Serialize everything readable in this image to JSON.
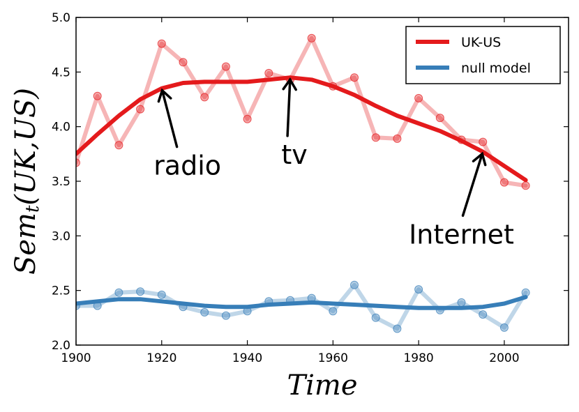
{
  "chart_data": {
    "type": "line",
    "title": "",
    "xlabel": "Time",
    "ylabel": "Sem_t(UK,US)",
    "xlim": [
      1900,
      2015
    ],
    "ylim": [
      2.0,
      5.0
    ],
    "xticks": [
      1900,
      1920,
      1940,
      1960,
      1980,
      2000
    ],
    "xtick_labels": [
      "1900",
      "1920",
      "1940",
      "1960",
      "1980",
      "2000"
    ],
    "yticks": [
      2.0,
      2.5,
      3.0,
      3.5,
      4.0,
      4.5,
      5.0
    ],
    "ytick_labels": [
      "2.0",
      "2.5",
      "3.0",
      "3.5",
      "4.0",
      "4.5",
      "5.0"
    ],
    "legend_position": "top-right",
    "legend": [
      "UK-US",
      "null model"
    ],
    "x": [
      1900,
      1905,
      1910,
      1915,
      1920,
      1925,
      1930,
      1935,
      1940,
      1945,
      1950,
      1955,
      1960,
      1965,
      1970,
      1975,
      1980,
      1985,
      1990,
      1995,
      2000,
      2005
    ],
    "series": [
      {
        "name": "UK-US",
        "color": "#e41a1c",
        "raw": [
          3.67,
          4.28,
          3.83,
          4.16,
          4.76,
          4.59,
          4.27,
          4.55,
          4.07,
          4.49,
          4.43,
          4.81,
          4.37,
          4.45,
          3.9,
          3.89,
          4.26,
          4.08,
          3.88,
          3.86,
          3.49,
          3.46
        ],
        "smoothed": [
          3.75,
          3.93,
          4.1,
          4.25,
          4.35,
          4.4,
          4.41,
          4.41,
          4.41,
          4.43,
          4.45,
          4.43,
          4.37,
          4.29,
          4.19,
          4.1,
          4.03,
          3.96,
          3.87,
          3.77,
          3.64,
          3.51
        ]
      },
      {
        "name": "null model",
        "color": "#377eb8",
        "raw": [
          2.36,
          2.36,
          2.48,
          2.49,
          2.46,
          2.35,
          2.3,
          2.27,
          2.31,
          2.4,
          2.41,
          2.43,
          2.31,
          2.55,
          2.25,
          2.15,
          2.51,
          2.32,
          2.39,
          2.28,
          2.16,
          2.48
        ],
        "smoothed": [
          2.38,
          2.4,
          2.42,
          2.42,
          2.4,
          2.38,
          2.36,
          2.35,
          2.35,
          2.37,
          2.38,
          2.39,
          2.38,
          2.37,
          2.36,
          2.35,
          2.34,
          2.34,
          2.34,
          2.35,
          2.38,
          2.44
        ]
      }
    ],
    "annotations": [
      {
        "text": "radio",
        "target": [
          1920,
          4.35
        ],
        "text_pos": [
          1926,
          3.56
        ]
      },
      {
        "text": "tv",
        "target": [
          1950,
          4.45
        ],
        "text_pos": [
          1951,
          3.66
        ]
      },
      {
        "text": "Internet",
        "target": [
          1995,
          3.77
        ],
        "text_pos": [
          1990,
          2.93
        ]
      }
    ]
  }
}
